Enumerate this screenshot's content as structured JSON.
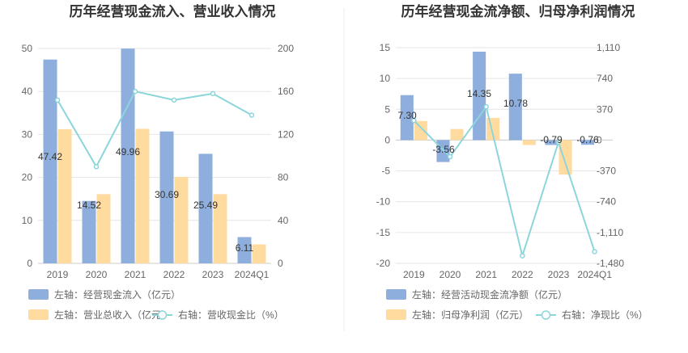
{
  "chart_data": [
    {
      "type": "bar",
      "title": "历年经营现金流入、营业收入情况",
      "categories": [
        "2019",
        "2020",
        "2021",
        "2022",
        "2023",
        "2024Q1"
      ],
      "left_axis": {
        "ylim": [
          0,
          50
        ],
        "ticks": [
          "0",
          "10",
          "20",
          "30",
          "40",
          "50"
        ]
      },
      "right_axis": {
        "ylim": [
          0,
          200
        ],
        "ticks": [
          "0",
          "40",
          "80",
          "120",
          "160",
          "200"
        ]
      },
      "series": [
        {
          "name": "左轴：经营现金流入（亿元）",
          "axis": "left",
          "kind": "bar",
          "color": "#8eaedd",
          "values": [
            47.42,
            14.52,
            49.96,
            30.69,
            25.49,
            6.11
          ],
          "labels": [
            "47.42",
            "14.52",
            "49.96",
            "30.69",
            "25.49",
            "6.11"
          ]
        },
        {
          "name": "左轴：营业总收入（亿元）",
          "axis": "left",
          "kind": "bar",
          "color": "#ffdba0",
          "values": [
            31.2,
            16.1,
            31.3,
            20.1,
            16.1,
            4.4
          ]
        },
        {
          "name": "右轴：营收现金比（%）",
          "axis": "right",
          "kind": "line",
          "color": "#8cd6db",
          "values": [
            152,
            90,
            160,
            152,
            158,
            138
          ]
        }
      ]
    },
    {
      "type": "bar",
      "title": "历年经营现金流净额、归母净利润情况",
      "categories": [
        "2019",
        "2020",
        "2021",
        "2022",
        "2023",
        "2024Q1"
      ],
      "left_axis": {
        "ylim": [
          -20,
          15
        ],
        "ticks": [
          "-20",
          "-15",
          "-10",
          "-5",
          "0",
          "5",
          "10",
          "15"
        ]
      },
      "right_axis": {
        "ylim": [
          -1480,
          1110
        ],
        "ticks": [
          "-1,480",
          "-1,110",
          "-740",
          "-370",
          "0",
          "370",
          "740",
          "1,110"
        ]
      },
      "series": [
        {
          "name": "左轴：经营活动现金流净额（亿元）",
          "axis": "left",
          "kind": "bar",
          "color": "#8eaedd",
          "values": [
            7.3,
            -3.56,
            14.35,
            10.78,
            -0.79,
            -0.76
          ],
          "labels": [
            "7.30",
            "-3.56",
            "14.35",
            "10.78",
            "-0.79",
            "-0.76"
          ]
        },
        {
          "name": "左轴：归母净利润（亿元）",
          "axis": "left",
          "kind": "bar",
          "color": "#ffdba0",
          "values": [
            3.1,
            1.8,
            3.6,
            -0.8,
            -5.6,
            0
          ]
        },
        {
          "name": "右轴：净现比（%）",
          "axis": "right",
          "kind": "line",
          "color": "#8cd6db",
          "values": [
            235,
            -200,
            400,
            -1390,
            -25,
            -1340
          ]
        }
      ]
    }
  ]
}
